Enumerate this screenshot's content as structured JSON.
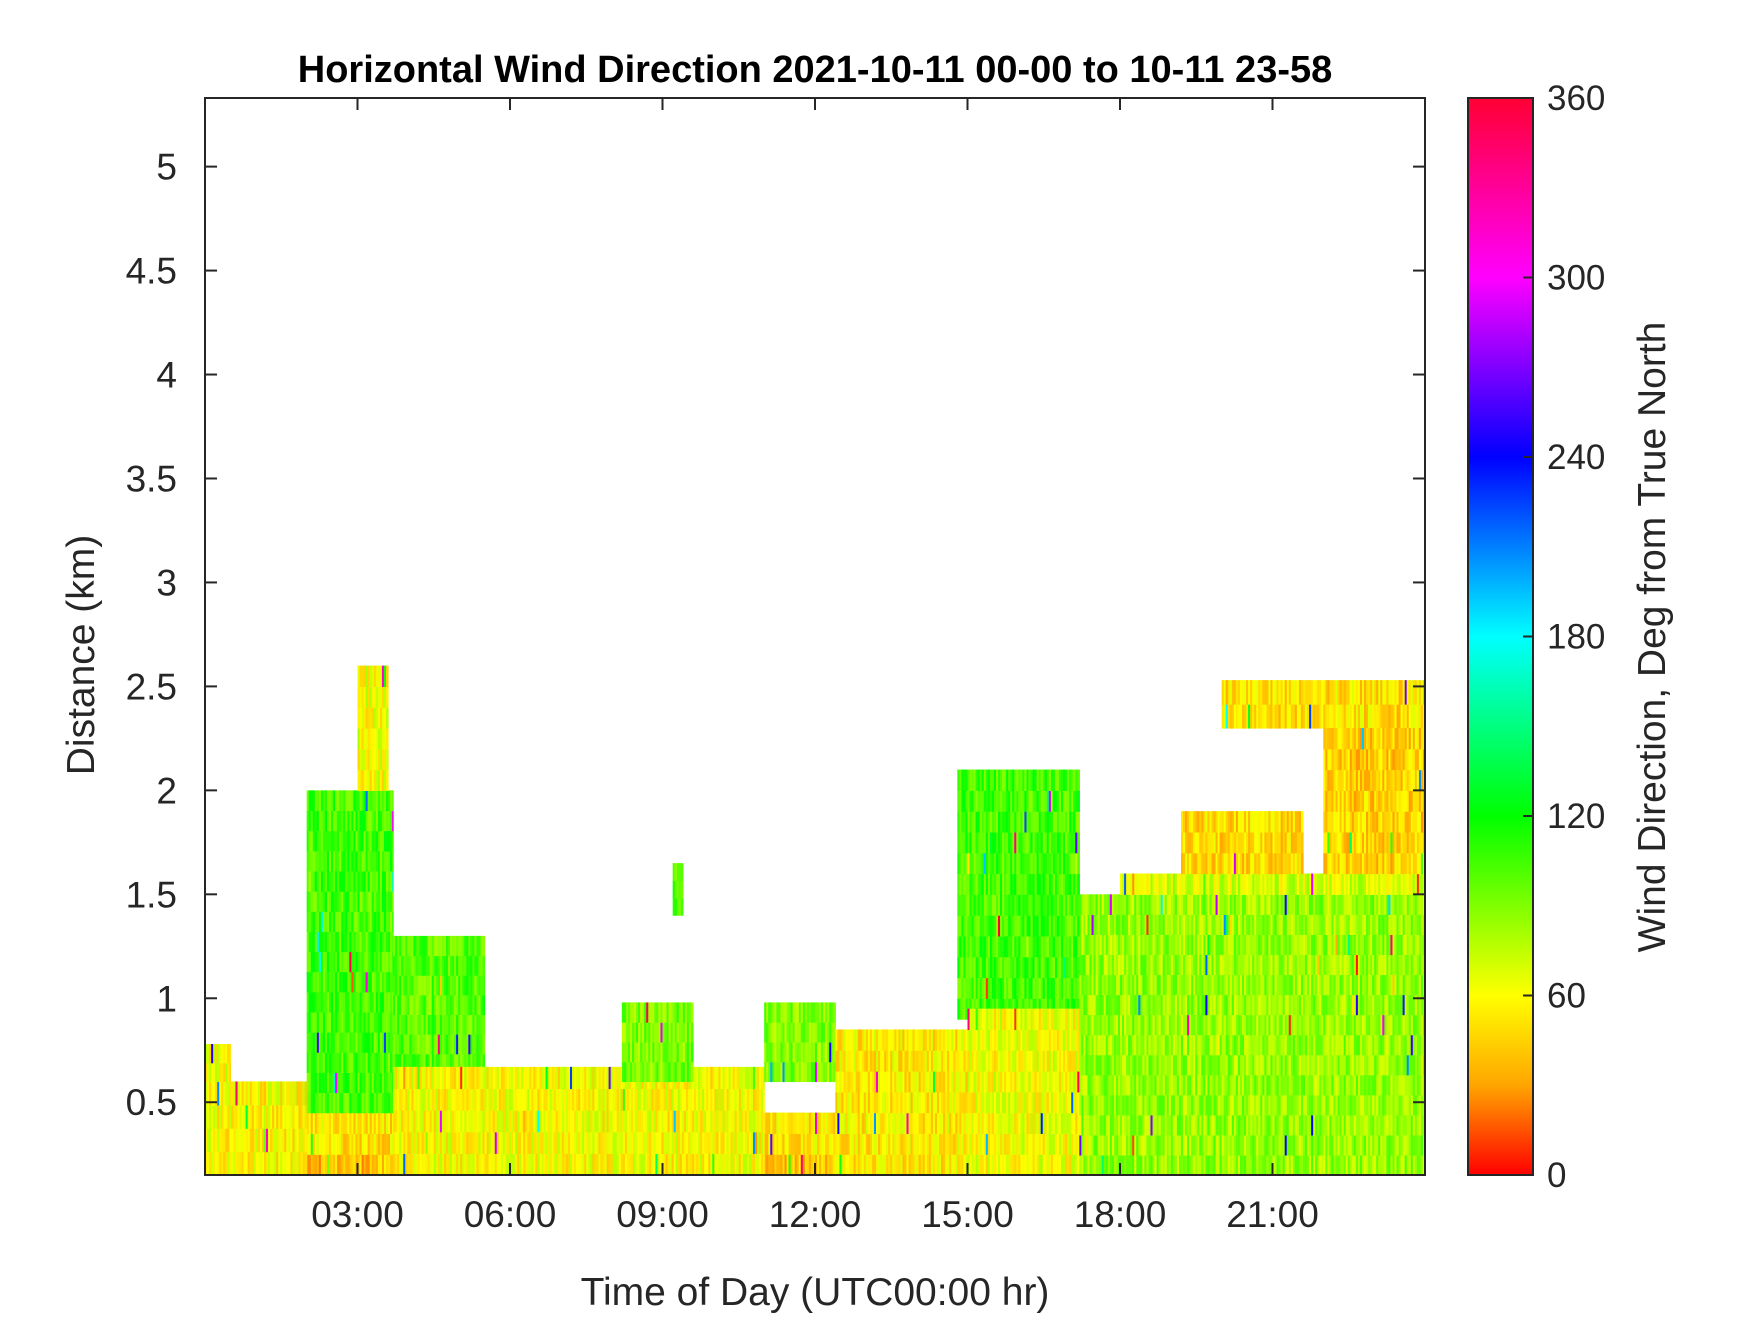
{
  "chart_data": {
    "type": "heatmap",
    "title": "Horizontal Wind Direction 2021-10-11 00-00 to 10-11 23-58",
    "xlabel": "Time of Day (UTC00:00 hr)",
    "ylabel": "Distance (km)",
    "colorbar_label": "Wind Direction, Deg from True North",
    "xlim_hours": [
      0,
      24
    ],
    "ylim_km": [
      0.15,
      5.33
    ],
    "clim_deg": [
      0,
      360
    ],
    "x_ticks": [
      {
        "value": 3,
        "label": "03:00"
      },
      {
        "value": 6,
        "label": "06:00"
      },
      {
        "value": 9,
        "label": "09:00"
      },
      {
        "value": 12,
        "label": "12:00"
      },
      {
        "value": 15,
        "label": "15:00"
      },
      {
        "value": 18,
        "label": "18:00"
      },
      {
        "value": 21,
        "label": "21:00"
      }
    ],
    "y_ticks": [
      {
        "value": 0.5,
        "label": "0.5"
      },
      {
        "value": 1,
        "label": "1"
      },
      {
        "value": 1.5,
        "label": "1.5"
      },
      {
        "value": 2,
        "label": "2"
      },
      {
        "value": 2.5,
        "label": "2.5"
      },
      {
        "value": 3,
        "label": "3"
      },
      {
        "value": 3.5,
        "label": "3.5"
      },
      {
        "value": 4,
        "label": "4"
      },
      {
        "value": 4.5,
        "label": "4.5"
      },
      {
        "value": 5,
        "label": "5"
      }
    ],
    "colorbar_ticks": [
      {
        "value": 0,
        "label": "0"
      },
      {
        "value": 60,
        "label": "60"
      },
      {
        "value": 120,
        "label": "120"
      },
      {
        "value": 180,
        "label": "180"
      },
      {
        "value": 240,
        "label": "240"
      },
      {
        "value": 300,
        "label": "300"
      },
      {
        "value": 360,
        "label": "360"
      }
    ],
    "colormap": [
      "#ff0000",
      "#ffa500",
      "#ffff00",
      "#00ff00",
      "#00ffff",
      "#0000ff",
      "#ff00ff",
      "#ff0033"
    ],
    "grid": false,
    "layers_note_hours_km_deg": [
      {
        "x0": 0.0,
        "x1": 24.0,
        "y0": 0.15,
        "y1": 0.25,
        "deg": 40
      },
      {
        "x0": 0.0,
        "x1": 24.0,
        "y0": 0.25,
        "y1": 0.45,
        "deg": 52
      }
    ],
    "regions": [
      {
        "x0": 0.0,
        "x1": 2.0,
        "y0": 0.15,
        "y1": 0.6,
        "deg": 58
      },
      {
        "x0": 0.0,
        "x1": 0.5,
        "y0": 0.6,
        "y1": 0.78,
        "deg": 62
      },
      {
        "x0": 2.0,
        "x1": 3.7,
        "y0": 0.45,
        "y1": 2.0,
        "deg": 105
      },
      {
        "x0": 3.0,
        "x1": 3.6,
        "y0": 2.0,
        "y1": 2.6,
        "deg": 62
      },
      {
        "x0": 3.7,
        "x1": 5.5,
        "y0": 0.45,
        "y1": 1.3,
        "deg": 100
      },
      {
        "x0": 3.7,
        "x1": 11.0,
        "y0": 0.15,
        "y1": 0.67,
        "deg": 60
      },
      {
        "x0": 8.2,
        "x1": 9.6,
        "y0": 0.6,
        "y1": 0.98,
        "deg": 92
      },
      {
        "x0": 9.2,
        "x1": 9.4,
        "y0": 1.4,
        "y1": 1.65,
        "deg": 100
      },
      {
        "x0": 11.0,
        "x1": 12.4,
        "y0": 0.6,
        "y1": 0.98,
        "deg": 90
      },
      {
        "x0": 12.4,
        "x1": 15.0,
        "y0": 0.15,
        "y1": 0.85,
        "deg": 55
      },
      {
        "x0": 14.8,
        "x1": 17.2,
        "y0": 0.9,
        "y1": 2.1,
        "deg": 105
      },
      {
        "x0": 15.0,
        "x1": 17.2,
        "y0": 0.15,
        "y1": 0.95,
        "deg": 62
      },
      {
        "x0": 17.2,
        "x1": 24.0,
        "y0": 0.15,
        "y1": 1.5,
        "deg": 85
      },
      {
        "x0": 18.0,
        "x1": 24.0,
        "y0": 1.5,
        "y1": 1.6,
        "deg": 70
      },
      {
        "x0": 19.2,
        "x1": 21.6,
        "y0": 1.6,
        "y1": 1.9,
        "deg": 48
      },
      {
        "x0": 20.0,
        "x1": 24.0,
        "y0": 2.3,
        "y1": 2.53,
        "deg": 50
      },
      {
        "x0": 22.0,
        "x1": 24.0,
        "y0": 1.6,
        "y1": 2.3,
        "deg": 45
      }
    ]
  }
}
